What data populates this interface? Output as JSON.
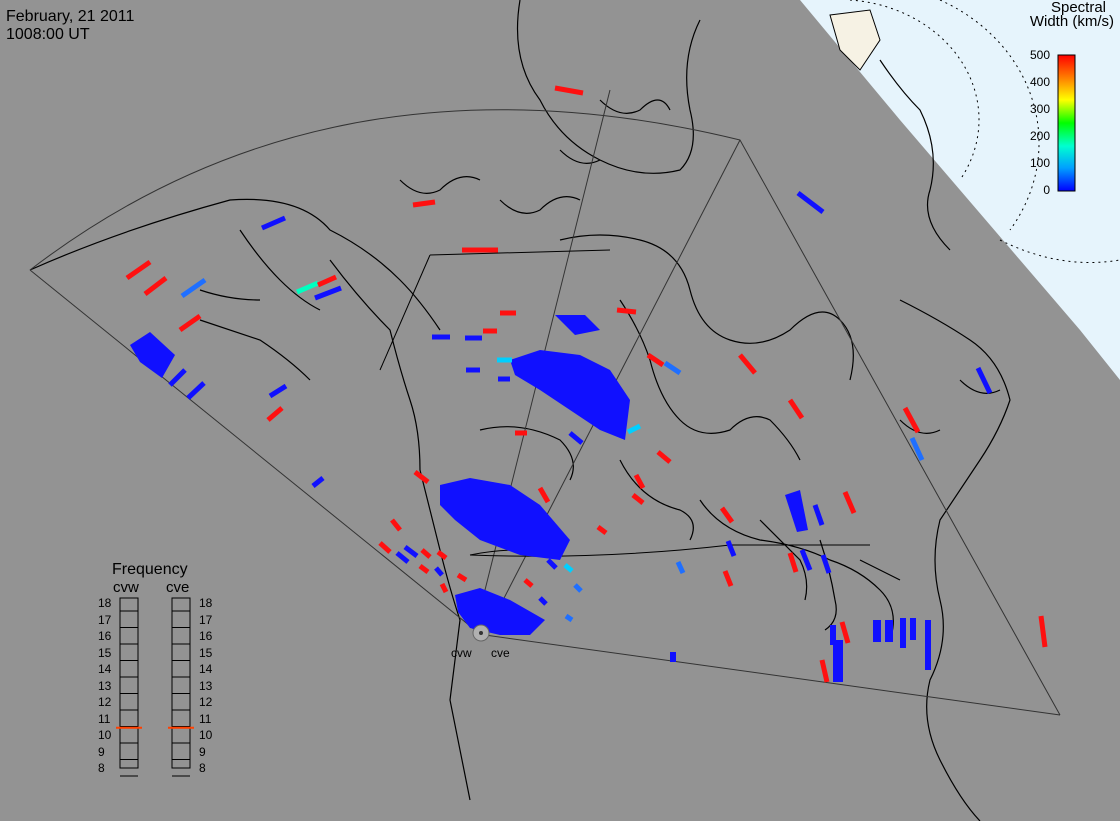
{
  "header": {
    "date": "February, 21 2011",
    "time": "1008:00 UT"
  },
  "colorbar": {
    "title_line1": "Spectral",
    "title_line2": "Width (km/s)",
    "ticks": [
      "500",
      "400",
      "300",
      "200",
      "100",
      "0"
    ],
    "colors": [
      "#0000ff",
      "#00a0ff",
      "#00ffd0",
      "#00ff00",
      "#ffff00",
      "#ff8000",
      "#ff0000"
    ]
  },
  "frequency_panel": {
    "title": "Frequency",
    "radars": [
      "cvw",
      "cve"
    ],
    "ticks": [
      "18",
      "17",
      "16",
      "15",
      "14",
      "13",
      "12",
      "11",
      "10",
      "9",
      "8"
    ],
    "cvw_mhz": 10.8,
    "cve_mhz": 10.8,
    "marker_color": "#ff4000"
  },
  "radars": [
    {
      "name": "cvw"
    },
    {
      "name": "cve"
    }
  ],
  "colors": {
    "ocean_gray": "#939393",
    "day_region": "#e6f4fc",
    "land_highlight": "#f6f2e4",
    "coast": "#000000",
    "low_width": "#1010ff",
    "high_width": "#ff1010"
  }
}
